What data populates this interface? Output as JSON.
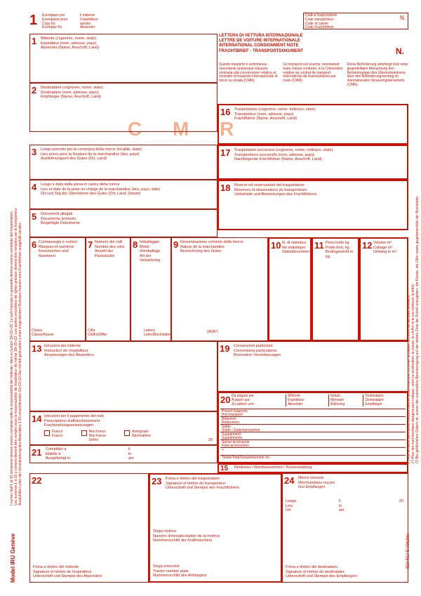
{
  "copy_number": "1",
  "copy_for": {
    "l1": "Esemplare per",
    "l2": "Exemplaire pour",
    "l3": "Copy for",
    "l4": "Exemplar für"
  },
  "sender_hdr": {
    "l1": "il mittente",
    "l2": "l'expéditeur",
    "l3": "sender",
    "l4": "Absender"
  },
  "carrier_code": {
    "l1": "Codice trasportatore",
    "l2": "Code transporteur",
    "l3": "Code of carrier",
    "l4": "Code Frachtführer",
    "n": "N."
  },
  "title": {
    "l1": "LETTERA DI VETTURA INTERNAZIONALE",
    "l2": "LETTRE DE VOITURE INTERNATIONALE",
    "l3": "INTERNATIONAL CONSIGNMENT NOTE",
    "l4": "FRACHTBRIEF - TRANSPORTDOKUMENT",
    "n": "N."
  },
  "watermark": "C M R",
  "legal": {
    "it": "Questo trasporto è sottomesso, nonostante qualunque clausola contraria alla convenzione relativa al contratto di trasporto internazionale di merci su strada (CMR).",
    "fr": "Ce transport est soumis, nonobstant toute clause contraire, à la Convention relative au contrat de transport international de marchandises par route (CMR).",
    "de": "Diese Beförderung unterliegt trotz einer gegenteiligen Abmachung den Bestimmungen des Übereinkommens über den Beförderungsvertrag im internationalen Strassengüterverkehr (CMR)."
  },
  "b1": {
    "n": "1",
    "t": "Mittente (cognome, nome, stato)\nExpéditeur (nom, adresse, pays)\nAbsender (Name, Anschrift, Land)"
  },
  "b2": {
    "n": "2",
    "t": "Destinatario (cognome, nome, stato)\nDestinataire (nom, adresse, pays)\nEmpfänger (Name, Anschrift, Land)"
  },
  "b3": {
    "n": "3",
    "t": "Luogo previsto per la consegna della merce (località, stato)\nLieu prévu pour la livraison de la marchandise (lieu, pays)\nAuslieferungsort des Gutes (Ort, Land)"
  },
  "b4": {
    "n": "4",
    "t": "Luogo e data della presa in carico della merce\nLieu et date de la prise en charge de la marchandise (lieu, pays, date)\nOrt und Tag der Übernahme des Gutes (Ort, Land, Datum)"
  },
  "b5": {
    "n": "5",
    "t": "Documenti allegati\nDocuments annexés\nBeigefügte Dokumente"
  },
  "b6": {
    "n": "6",
    "t": "Contrassegni e numeri\nMarques et numéros\nKennzeichen und Nummern"
  },
  "b7": {
    "n": "7",
    "t": "Numero dei colli\nNombre des colis\nAnzahl der Packstücke"
  },
  "b8": {
    "n": "8",
    "t": "Imballaggio\nMode d'emballage\nArt der Verpackung"
  },
  "b9": {
    "n": "9",
    "t": "Denominazione corrente della merce\nNature de la marchandise\nBezeichnung des Gutes"
  },
  "b10": {
    "n": "10",
    "t": "N. di statistica\nNo statistique\nStatistiknummer"
  },
  "b11": {
    "n": "11",
    "t": "Peso lordo kg\nPoids brut, kg.\nBruttogewicht in kg."
  },
  "b12": {
    "n": "12",
    "t": "Volume m³\nCubage m³\nUmfang in m³"
  },
  "row_bottom": {
    "c1": "Classe\nClasse/Klasse",
    "c2": "Cifra\nChiffre/Ziffer",
    "c3": "Lettera\nLettre/Buchstabe",
    "c4": "(ADR*)"
  },
  "b13": {
    "n": "13",
    "t": "Istruzioni del mittente\nInstruction de l'expéditeur\nAnweisungen des Absenders"
  },
  "b14": {
    "n": "14",
    "t": "Istruzioni per il pagamento del nolo\nPrescriptions d'affranchissement\nFrachtzahlungsanweisungen"
  },
  "b14_opts": {
    "o1": "Franco\nFranco",
    "o2": "Non franco\nNon franco\nUnfrei",
    "o3": "Assegnato\nNachnahme"
  },
  "b15": {
    "n": "15",
    "t": "Rimborso / Remboursement / Rückerstattung"
  },
  "b16": {
    "n": "16",
    "t": "Trasportatore (cognome, nome, indirizzo, stato)\nTransporteur (nom, adresse, pays)\nFrachtführer (Name, Anschrift, Land)"
  },
  "b17": {
    "n": "17",
    "t": "Trasportatori successivi (cognome, nome, indirizzo, stato)\nTransporteurs successifs (nom, adresse, pays)\nNachfolgende Frachtführer (Name, Anschrift, Land)"
  },
  "b18": {
    "n": "18",
    "t": "Riserve ed osservazioni del trasportatore\nRéserves et observations du transporteurs\nVorbehalte und Bemerkungen des Frachtführers"
  },
  "b19": {
    "n": "19",
    "t": "Convenzioni particolari\nConventions particulières\nBesondere Vereinbarungen"
  },
  "b20": {
    "n": "20",
    "hdr": {
      "c1": "Da pagare per:\nA payer par:\nZu zahlen von:",
      "c2": "Mittente\nExpéditeur\nAbsender",
      "c3": "Valuta\nMonnaie\nWährung",
      "c4": "Destinatario\nDestinataire\nEmpfänger"
    },
    "rows": [
      "Prezzo trasporto\nPrix transport\nFracht",
      "Riduzioni\nRéductions\nErmässigungen",
      "Saldo\nSolde / Zwischensumme",
      "Supplementi\nSuppléments\nZuschläge",
      "Spese accessorie\nFrais accessoires\nNebengebühren",
      "+",
      "Totale/Total/Gesamtsumme no.:"
    ]
  },
  "b21": {
    "n": "21",
    "t": "Compilato a\nEtablie à\nAusgefertigt in",
    "date": "il\nle\nam",
    "nr": "20"
  },
  "b22": {
    "n": "22",
    "sig": "Firma e timbro del mittente\nSignature et timbre de l'expéditeur\nUnterschrift und Stempel des Absenders"
  },
  "b23": {
    "n": "23",
    "t": "Firma e timbro del trasportatore\nSignature et timbre du transporteur\nUnterschrift und Stempel des Frachtführers",
    "m1": "Targa motrice\nNuméro d'immatricolation de la motrice\nNummernschild der Kraftmaschine",
    "m2": "Targa rimorchio\nTractor number plate\nNummernschild des Anhängers"
  },
  "b24": {
    "n": "24",
    "t": "Merce ricevuta\nMerchandises reçues\nGut Empfangen",
    "place": "Luogo\nLieu\nOrt",
    "date": "il\nle\nam",
    "nr": "20",
    "sig": "Firma e timbro del destinatario\nSignature et timbre du destinataire\nUnterschrift und Stempel des Empfängers"
  },
  "side_left": {
    "l1": "I numeri dall'1 al 15 compreso devono essere compilati sotto la responsabilità del mittente; idem ai numeri 19+21+22. Le parti fiancate in grassetto devono essere compilate dal trasportatore.",
    "l2": "Les numéros 1 à 15 y compris doivent être remplis sous la responsabilité de l'expéditeur de même 19+21+22. Les parties encadrées de lignes grasses doivent être remplies par le transporteur.",
    "l3": "Auszufüllen unter der Verantwortung des Absenders 1-15 einschliesslich 19+21+22 Die mit fett gedruckten Linien eingerahmten Rubriken müssen vom Frachtführer ausgefüllt werden."
  },
  "side_right": "(*) Per le merci pericolose indicare oltre le denominazione corrente: la classe, la cifra e se del caso la lettera.\n(*) Pour les marchandises dangereuses indiquer, outre la certification: la classe, le chiffre et le cas échéant, la lettre.\n(*) Bei gefährlichen Gütern ist, ausser der eventuellen Bescheinigung auf der letzten Zinie der Rubrik anzugeben: die Klasse, die Ziffer sowie gegebenenfalls der Buchstabe.",
  "footer": "Model IRU Genève",
  "edi": "EDI RCI  E 00620is"
}
